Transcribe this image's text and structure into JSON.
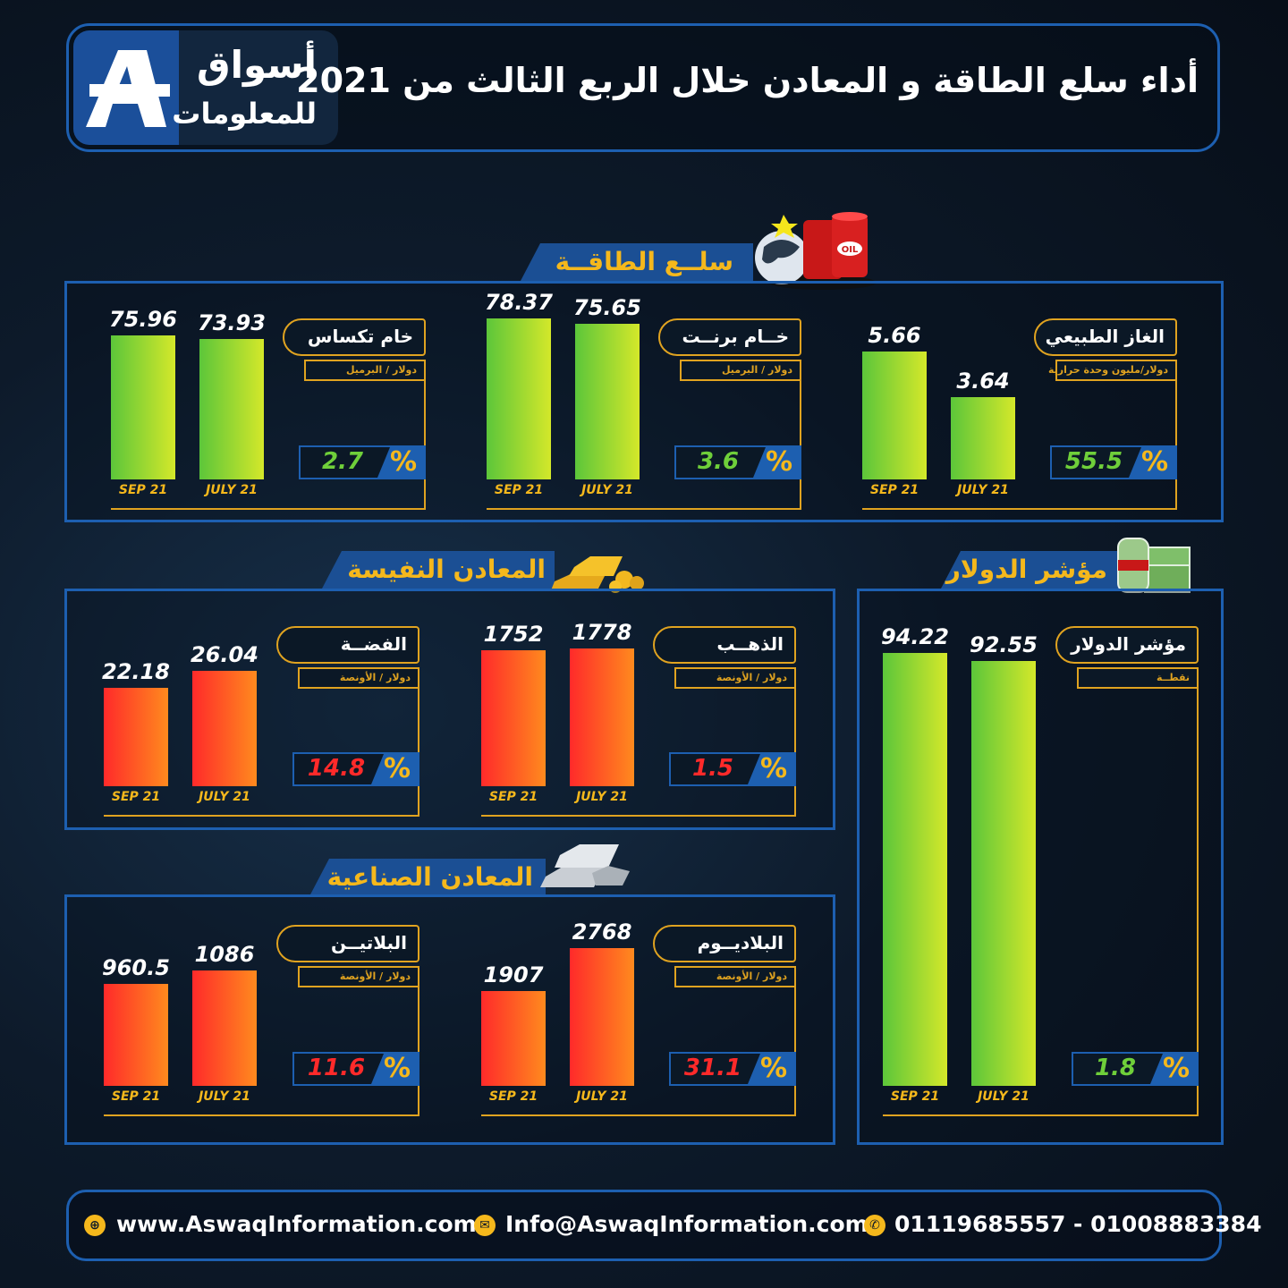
{
  "header": {
    "title": "أداء سلع الطاقة و المعادن خلال الربع الثالث من 2021",
    "logo_line1": "أسواق",
    "logo_line2": "للمعلومات",
    "logo_letter": "A"
  },
  "sections": {
    "energy": "سلــع الطاقــة",
    "dollar": "مؤشر الدولار",
    "precious": "المعادن النفيسة",
    "industrial": "المعادن الصناعية"
  },
  "colors": {
    "accent": "#f5b81c",
    "frame": "#1d5fb0",
    "up_green": "#6fcf3a",
    "down_red": "#ff2a2a"
  },
  "chart_data": [
    {
      "type": "bar",
      "title": "الغاز الطبيعي",
      "unit": "دولار/مليون وحدة حرارية",
      "categories": [
        "SEP 21",
        "JULY 21"
      ],
      "values": [
        5.66,
        3.64
      ],
      "percent_change": 55.5,
      "percent_symbol": "%",
      "direction": "up",
      "labels": [
        "5.66",
        "3.64"
      ]
    },
    {
      "type": "bar",
      "title": "خــام برنــت",
      "unit": "دولار / البرميل",
      "categories": [
        "SEP 21",
        "JULY 21"
      ],
      "values": [
        78.37,
        75.65
      ],
      "percent_change": 3.6,
      "percent_symbol": "%",
      "direction": "up",
      "labels": [
        "78.37",
        "75.65"
      ]
    },
    {
      "type": "bar",
      "title": "خام تكساس",
      "unit": "دولار / البرميل",
      "categories": [
        "SEP 21",
        "JULY 21"
      ],
      "values": [
        75.96,
        73.93
      ],
      "percent_change": 2.7,
      "percent_symbol": "%",
      "direction": "up",
      "labels": [
        "75.96",
        "73.93"
      ]
    },
    {
      "type": "bar",
      "title": "الذهــب",
      "unit": "دولار / الأونصة",
      "categories": [
        "SEP 21",
        "JULY 21"
      ],
      "values": [
        1752,
        1778
      ],
      "percent_change": 1.5,
      "percent_symbol": "%",
      "direction": "down",
      "labels": [
        "1752",
        "1778"
      ]
    },
    {
      "type": "bar",
      "title": "الفضــة",
      "unit": "دولار / الأونصة",
      "categories": [
        "SEP 21",
        "JULY 21"
      ],
      "values": [
        22.18,
        26.04
      ],
      "percent_change": 14.8,
      "percent_symbol": "%",
      "direction": "down",
      "labels": [
        "22.18",
        "26.04"
      ]
    },
    {
      "type": "bar",
      "title": "البلاديــوم",
      "unit": "دولار / الأونصة",
      "categories": [
        "SEP 21",
        "JULY 21"
      ],
      "values": [
        1907,
        2768
      ],
      "percent_change": 31.1,
      "percent_symbol": "%",
      "direction": "down",
      "labels": [
        "1907",
        "2768"
      ]
    },
    {
      "type": "bar",
      "title": "البلاتيــن",
      "unit": "دولار / الأونصة",
      "categories": [
        "SEP 21",
        "JULY 21"
      ],
      "values": [
        960.5,
        1086
      ],
      "percent_change": 11.6,
      "percent_symbol": "%",
      "direction": "down",
      "labels": [
        "960.5",
        "1086"
      ]
    },
    {
      "type": "bar",
      "title": "مؤشر الدولار",
      "unit": "نقطــة",
      "categories": [
        "SEP 21",
        "JULY 21"
      ],
      "values": [
        94.22,
        92.55
      ],
      "percent_change": 1.8,
      "percent_symbol": "%",
      "direction": "up",
      "labels": [
        "94.22",
        "92.55"
      ]
    }
  ],
  "footer": {
    "website": "www.AswaqInformation.com",
    "email": "Info@AswaqInformation.com",
    "phones": "01119685557 - 01008883384"
  }
}
